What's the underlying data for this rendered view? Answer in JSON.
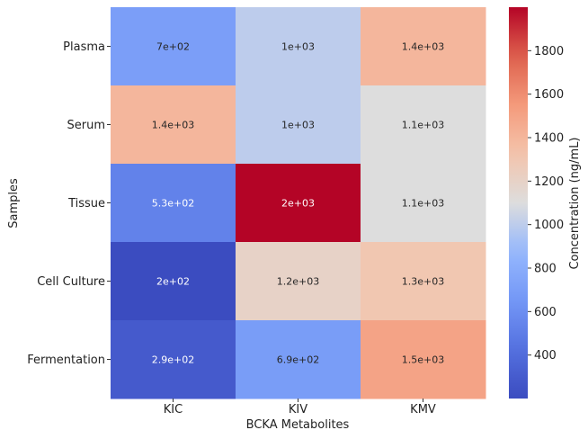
{
  "chart_data": {
    "type": "heatmap",
    "xlabel": "BCKA Metabolites",
    "ylabel": "Samples",
    "x_categories": [
      "KIC",
      "KIV",
      "KMV"
    ],
    "y_categories": [
      "Plasma",
      "Serum",
      "Tissue",
      "Cell Culture",
      "Fermentation"
    ],
    "values": [
      [
        700,
        1000,
        1400
      ],
      [
        1400,
        1000,
        1100
      ],
      [
        530,
        2000,
        1100
      ],
      [
        200,
        1200,
        1300
      ],
      [
        290,
        690,
        1500
      ]
    ],
    "annotations": [
      [
        "7e+02",
        "1e+03",
        "1.4e+03"
      ],
      [
        "1.4e+03",
        "1e+03",
        "1.1e+03"
      ],
      [
        "5.3e+02",
        "2e+03",
        "1.1e+03"
      ],
      [
        "2e+02",
        "1.2e+03",
        "1.3e+03"
      ],
      [
        "2.9e+02",
        "6.9e+02",
        "1.5e+03"
      ]
    ],
    "colorbar": {
      "label": "Concentration (ng/mL)",
      "range": [
        200,
        2000
      ],
      "ticks": [
        400,
        600,
        800,
        1000,
        1200,
        1400,
        1600,
        1800
      ],
      "colormap": "coolwarm"
    },
    "colors": {
      "low": "#3b4cc0",
      "mid": "#dddddd",
      "high": "#b40426"
    }
  }
}
